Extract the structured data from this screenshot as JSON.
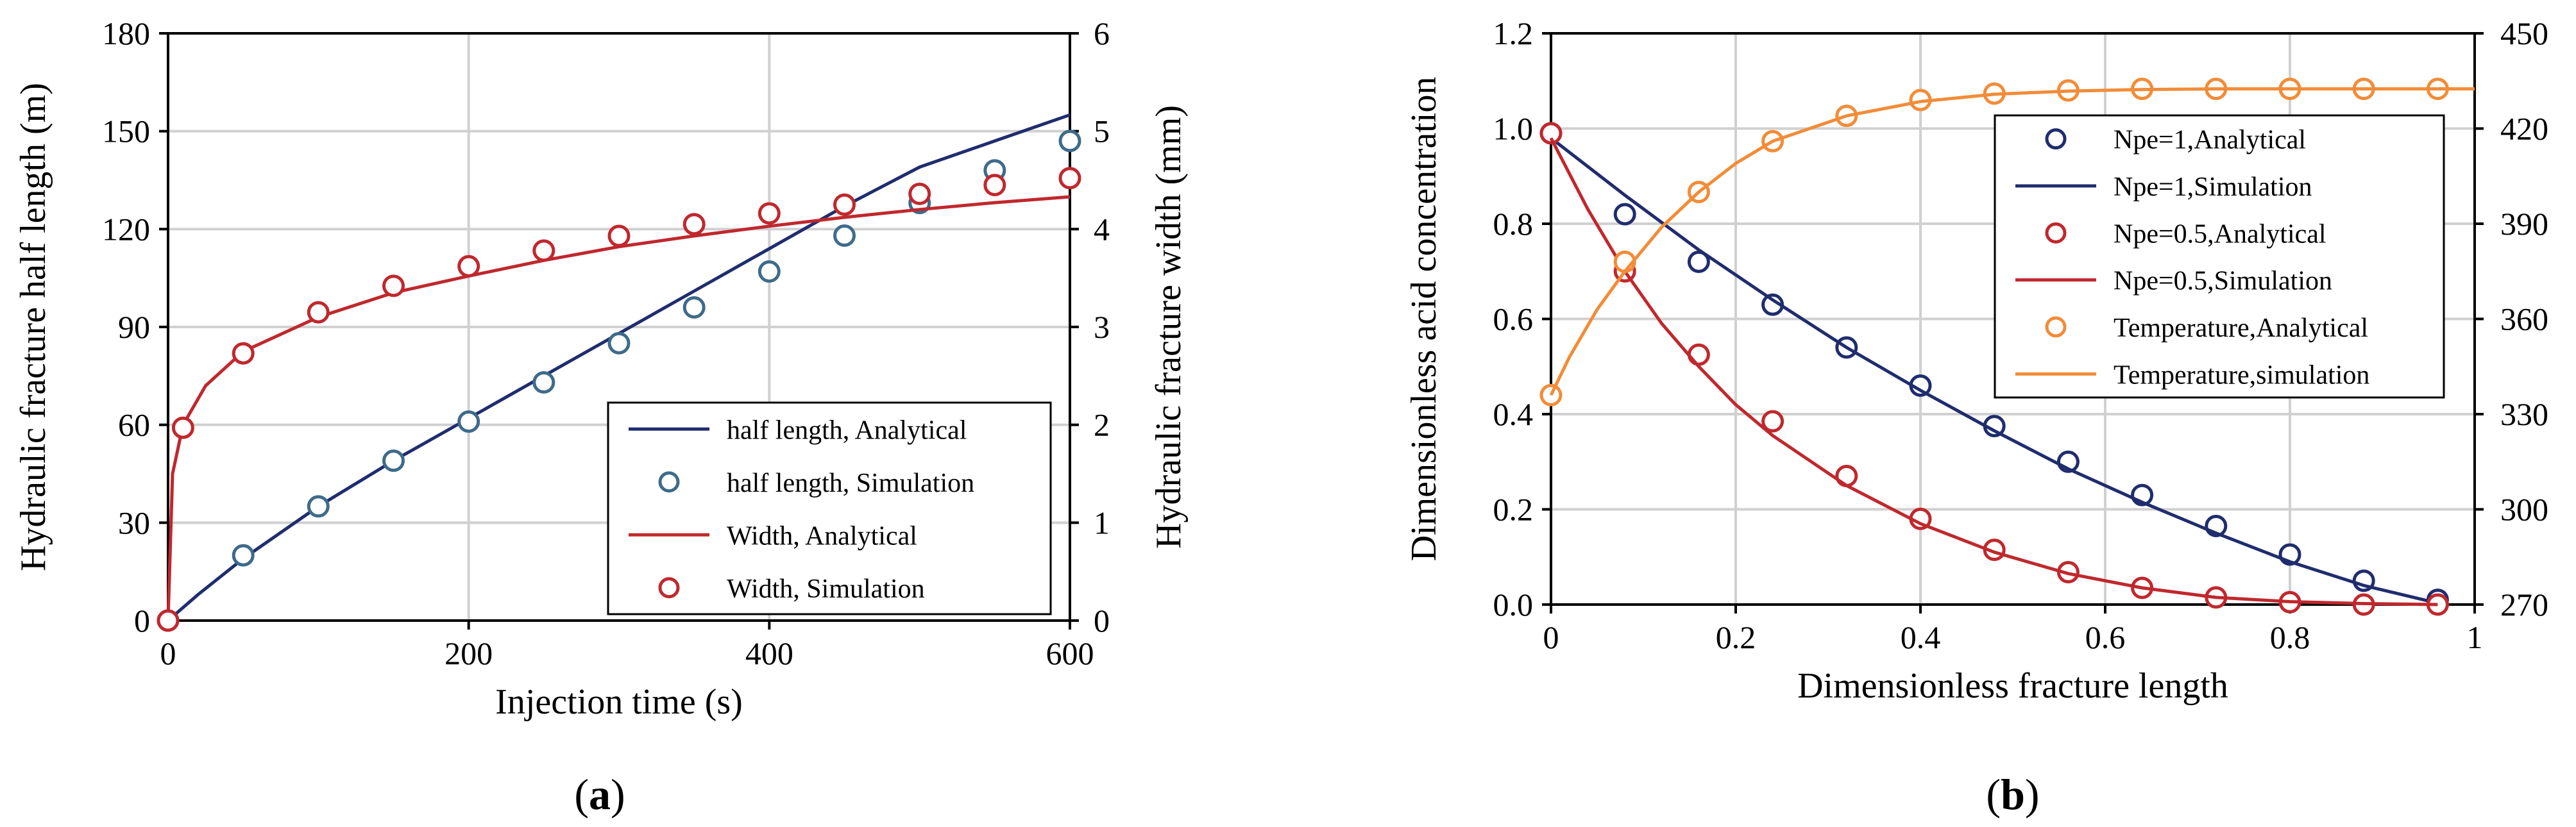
{
  "chart_data": [
    {
      "type": "line",
      "panel_label": "a",
      "xlabel": "Injection time (s)",
      "ylabel_left": "Hydraulic fracture half length (m)",
      "ylabel_right": "Hydraulic fracture width (mm)",
      "xlim": [
        0,
        600
      ],
      "ylim_left": [
        0,
        180
      ],
      "ylim_right": [
        0,
        6
      ],
      "xticks": [
        "0",
        "200",
        "400",
        "600"
      ],
      "yticks_left": [
        "0",
        "30",
        "60",
        "90",
        "120",
        "150",
        "180"
      ],
      "yticks_right": [
        "0",
        "1",
        "2",
        "3",
        "4",
        "5",
        "6"
      ],
      "grid": true,
      "legend_position": "bottom-right",
      "series": [
        {
          "name": "half length, Analytical",
          "axis": "left",
          "style": "line",
          "color": "#1f2d6e",
          "x": [
            0,
            20,
            50,
            100,
            150,
            200,
            250,
            300,
            350,
            400,
            450,
            500,
            550,
            600
          ],
          "y": [
            0,
            8,
            19,
            35,
            49,
            62,
            75,
            88,
            101,
            114,
            127,
            139,
            147,
            155
          ]
        },
        {
          "name": "half length, Simulation",
          "axis": "left",
          "style": "marker",
          "color": "#3e6b8a",
          "x": [
            0,
            50,
            100,
            150,
            200,
            250,
            300,
            350,
            400,
            450,
            500,
            550,
            600
          ],
          "y": [
            0,
            20,
            35,
            49,
            61,
            73,
            85,
            96,
            107,
            118,
            128,
            138,
            147
          ]
        },
        {
          "name": "Width, Analytical",
          "axis": "right",
          "style": "line",
          "color": "#c0282d",
          "x": [
            0,
            3,
            10,
            25,
            50,
            100,
            150,
            200,
            250,
            300,
            350,
            400,
            450,
            500,
            550,
            600
          ],
          "y": [
            0,
            1.5,
            2.0,
            2.4,
            2.75,
            3.1,
            3.35,
            3.52,
            3.68,
            3.82,
            3.93,
            4.03,
            4.12,
            4.2,
            4.27,
            4.33
          ]
        },
        {
          "name": "Width, Simulation",
          "axis": "right",
          "style": "marker",
          "color": "#c0282d",
          "x": [
            0,
            10,
            50,
            100,
            150,
            200,
            250,
            300,
            350,
            400,
            450,
            500,
            550,
            600
          ],
          "y": [
            0,
            1.97,
            2.73,
            3.15,
            3.42,
            3.62,
            3.78,
            3.93,
            4.05,
            4.16,
            4.25,
            4.36,
            4.45,
            4.52
          ]
        }
      ]
    },
    {
      "type": "line",
      "panel_label": "b",
      "xlabel": "Dimensionless fracture length",
      "ylabel_left": "Dimensionless acid concentration",
      "ylabel_right": "",
      "xlim": [
        0,
        1
      ],
      "ylim_left": [
        0,
        1.2
      ],
      "ylim_right": [
        270,
        450
      ],
      "xticks": [
        "0",
        "0.2",
        "0.4",
        "0.6",
        "0.8",
        "1"
      ],
      "yticks_left": [
        "0.0",
        "0.2",
        "0.4",
        "0.6",
        "0.8",
        "1.0",
        "1.2"
      ],
      "yticks_right": [
        "270",
        "300",
        "330",
        "360",
        "390",
        "420",
        "450"
      ],
      "grid": true,
      "legend_position": "top-right",
      "series": [
        {
          "name": "Npe=1,Analytical",
          "axis": "left",
          "style": "marker",
          "color": "#1f2d6e",
          "x": [
            0,
            0.08,
            0.16,
            0.24,
            0.32,
            0.4,
            0.48,
            0.56,
            0.64,
            0.72,
            0.8,
            0.88,
            0.96
          ],
          "y": [
            0.99,
            0.82,
            0.72,
            0.63,
            0.54,
            0.46,
            0.375,
            0.3,
            0.23,
            0.165,
            0.105,
            0.05,
            0.01
          ]
        },
        {
          "name": "Npe=1,Simulation",
          "axis": "left",
          "style": "line",
          "color": "#1f2d6e",
          "x": [
            0,
            0.08,
            0.16,
            0.24,
            0.32,
            0.4,
            0.48,
            0.56,
            0.64,
            0.72,
            0.8,
            0.88,
            0.96
          ],
          "y": [
            0.98,
            0.86,
            0.745,
            0.64,
            0.54,
            0.45,
            0.365,
            0.285,
            0.215,
            0.15,
            0.09,
            0.04,
            0.003
          ]
        },
        {
          "name": "Npe=0.5,Analytical",
          "axis": "left",
          "style": "marker",
          "color": "#c0282d",
          "x": [
            0,
            0.08,
            0.16,
            0.24,
            0.32,
            0.4,
            0.48,
            0.56,
            0.64,
            0.72,
            0.8,
            0.88,
            0.96
          ],
          "y": [
            0.99,
            0.7,
            0.525,
            0.385,
            0.27,
            0.18,
            0.115,
            0.068,
            0.035,
            0.015,
            0.005,
            0.0,
            0.0
          ]
        },
        {
          "name": "Npe=0.5,Simulation",
          "axis": "left",
          "style": "line",
          "color": "#c0282d",
          "x": [
            0,
            0.04,
            0.08,
            0.12,
            0.16,
            0.2,
            0.24,
            0.32,
            0.4,
            0.48,
            0.56,
            0.64,
            0.72,
            0.8,
            0.88,
            0.96
          ],
          "y": [
            0.98,
            0.83,
            0.7,
            0.59,
            0.5,
            0.42,
            0.355,
            0.25,
            0.17,
            0.11,
            0.065,
            0.035,
            0.015,
            0.006,
            0.002,
            0.0
          ]
        },
        {
          "name": "Temperature,Analytical",
          "axis": "right",
          "style": "marker",
          "color": "#f28c38",
          "x": [
            0,
            0.08,
            0.16,
            0.24,
            0.32,
            0.4,
            0.48,
            0.56,
            0.64,
            0.72,
            0.8,
            0.88,
            0.96
          ],
          "y": [
            336,
            378,
            400,
            416,
            424,
            429,
            431,
            432,
            432.5,
            432.5,
            432.5,
            432.5,
            432.5
          ]
        },
        {
          "name": "Temperature,simulation",
          "axis": "right",
          "style": "line",
          "color": "#f28c38",
          "x": [
            0,
            0.02,
            0.05,
            0.08,
            0.12,
            0.16,
            0.2,
            0.24,
            0.32,
            0.4,
            0.48,
            0.56,
            0.64,
            0.72,
            0.8,
            0.88,
            0.96,
            1.0
          ],
          "y": [
            336,
            348,
            363,
            375,
            389,
            400,
            409,
            416,
            424,
            428.5,
            430.8,
            431.8,
            432.3,
            432.5,
            432.5,
            432.5,
            432.5,
            432.5
          ]
        }
      ]
    }
  ]
}
